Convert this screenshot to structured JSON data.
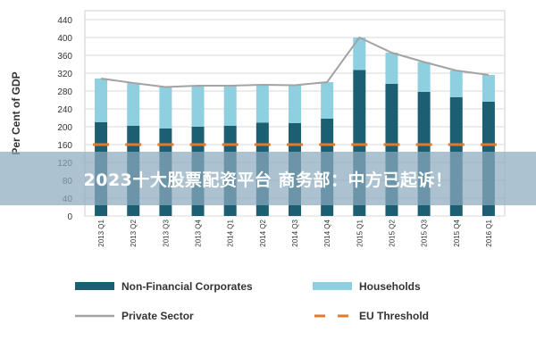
{
  "chart_data": {
    "type": "bar",
    "ylabel": "Per Cent of GDP",
    "ylim": [
      0,
      440
    ],
    "yticks": [
      0,
      40,
      80,
      120,
      160,
      200,
      240,
      280,
      320,
      360,
      400,
      440
    ],
    "categories": [
      "2013 Q1",
      "2013 Q2",
      "2013 Q3",
      "2013 Q4",
      "2014 Q1",
      "2014 Q2",
      "2014 Q3",
      "2014 Q4",
      "2015 Q1",
      "2015 Q2",
      "2015 Q3",
      "2015 Q4",
      "2016 Q1"
    ],
    "series": [
      {
        "name": "Non-Financial Corporates",
        "kind": "stacked-bar",
        "color": "#1c5f72",
        "values": [
          210,
          202,
          196,
          200,
          202,
          209,
          208,
          218,
          327,
          296,
          278,
          266,
          256
        ]
      },
      {
        "name": "Households",
        "kind": "stacked-bar",
        "color": "#8ecfe0",
        "values": [
          98,
          96,
          93,
          92,
          90,
          85,
          85,
          82,
          73,
          70,
          67,
          60,
          60
        ]
      },
      {
        "name": "Private Sector",
        "kind": "line",
        "color": "#a3a3a3",
        "values": [
          308,
          298,
          289,
          292,
          292,
          294,
          293,
          300,
          400,
          366,
          345,
          326,
          316
        ]
      },
      {
        "name": "EU Threshold",
        "kind": "dashed-line",
        "color": "#e07b2e",
        "values": [
          160,
          160,
          160,
          160,
          160,
          160,
          160,
          160,
          160,
          160,
          160,
          160,
          160
        ]
      }
    ],
    "grid": true,
    "legend_position": "bottom"
  },
  "overlay": {
    "banner_text": "2023十大股票配资平台 商务部：中方已起诉！"
  }
}
